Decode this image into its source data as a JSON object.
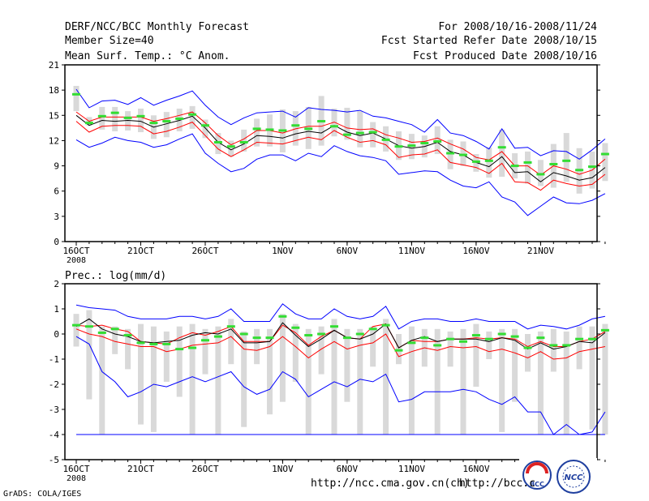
{
  "header": {
    "title": "DERF/NCC/BCC Monthly Forecast",
    "member_size": "Member Size=40",
    "variable": "Mean Surf. Temp.: °C Anom.",
    "period": "For 2008/10/16-2008/11/24",
    "started": "Fcst Started Refer Date 2008/10/15",
    "produced": "Fcst Produced Date 2008/10/16"
  },
  "footer": {
    "grads": "GrADS: COLA/IGES",
    "url1": "http://ncc.cma.gov.cn(ch)",
    "url2": "http://bcc.c",
    "logo1_text": "BCC",
    "logo2_text": "NCC"
  },
  "colors": {
    "max_min": "#0000ff",
    "percentile": "#ff0000",
    "median": "#000000",
    "members": "#d9d9d9",
    "ensemble": "#33dd33",
    "frame": "#000000"
  },
  "chart_data": [
    {
      "type": "line",
      "title": "Mean Surf. Temp.: °C Anom.",
      "x_start_label": "16OCT",
      "year_label": "2008",
      "x_tick_labels": [
        "16OCT",
        "21OCT",
        "26OCT",
        "1NOV",
        "6NOV",
        "11NOV",
        "16NOV",
        "21NOV"
      ],
      "x_tick_days": [
        0,
        5,
        10,
        16,
        21,
        26,
        31,
        36
      ],
      "ylim": [
        0,
        21
      ],
      "y_ticks": [
        0,
        3,
        6,
        9,
        12,
        15,
        18,
        21
      ],
      "series": [
        {
          "name": "max",
          "values": [
            18.1,
            15.9,
            16.7,
            16.8,
            16.3,
            17.1,
            16.2,
            16.8,
            17.3,
            17.9,
            16.2,
            14.8,
            13.9,
            14.7,
            15.3,
            15.4,
            15.5,
            14.8,
            15.9,
            15.7,
            15.6,
            15.4,
            15.6,
            14.9,
            14.7,
            14.3,
            13.9,
            13.0,
            14.5,
            12.9,
            12.6,
            11.9,
            11.0,
            13.4,
            11.1,
            11.2,
            10.2,
            10.8,
            10.7,
            9.8,
            10.9,
            12.2
          ]
        },
        {
          "name": "p75",
          "values": [
            15.4,
            14.3,
            14.8,
            14.8,
            14.8,
            14.8,
            14.3,
            14.6,
            15.0,
            15.4,
            14.1,
            12.6,
            11.5,
            12.2,
            13.2,
            13.2,
            12.9,
            13.4,
            13.7,
            13.7,
            14.2,
            13.5,
            13.3,
            13.4,
            12.7,
            12.3,
            11.8,
            11.9,
            12.3,
            11.6,
            11.0,
            10.0,
            9.7,
            10.7,
            9.0,
            9.0,
            7.9,
            9.0,
            8.6,
            8.0,
            8.5,
            9.8
          ]
        },
        {
          "name": "median",
          "values": [
            15.0,
            13.8,
            14.4,
            14.3,
            14.4,
            14.3,
            13.6,
            14.0,
            14.4,
            14.9,
            13.5,
            11.8,
            10.9,
            11.6,
            12.6,
            12.5,
            12.3,
            12.8,
            13.1,
            12.9,
            13.8,
            13.0,
            12.6,
            12.9,
            12.2,
            11.4,
            11.1,
            11.3,
            11.8,
            10.7,
            10.3,
            9.4,
            8.9,
            10.1,
            8.2,
            8.3,
            7.1,
            8.2,
            7.8,
            7.3,
            7.6,
            8.8
          ]
        },
        {
          "name": "p25",
          "values": [
            14.3,
            13.0,
            13.7,
            13.8,
            13.8,
            13.7,
            12.8,
            13.1,
            13.6,
            14.2,
            12.6,
            11.0,
            10.1,
            10.9,
            11.8,
            11.7,
            11.6,
            12.0,
            12.4,
            12.1,
            13.2,
            12.4,
            11.8,
            12.0,
            11.5,
            10.0,
            10.3,
            10.4,
            10.9,
            9.4,
            9.1,
            8.8,
            8.1,
            9.3,
            7.1,
            7.0,
            6.1,
            7.3,
            6.9,
            6.6,
            6.8,
            8.0
          ]
        },
        {
          "name": "min",
          "values": [
            12.1,
            11.2,
            11.7,
            12.4,
            12.0,
            11.8,
            11.2,
            11.5,
            12.2,
            12.8,
            10.5,
            9.3,
            8.3,
            8.7,
            9.8,
            10.3,
            10.3,
            9.6,
            10.5,
            10.1,
            11.4,
            10.7,
            10.2,
            10.0,
            9.6,
            8.0,
            8.2,
            8.4,
            8.3,
            7.3,
            6.6,
            6.4,
            7.1,
            5.3,
            4.7,
            3.1,
            4.2,
            5.3,
            4.6,
            4.5,
            4.9,
            5.7
          ]
        },
        {
          "name": "ensemble_mean",
          "values": [
            17.5,
            14.1,
            14.9,
            15.3,
            14.7,
            14.9,
            14.1,
            14.3,
            14.6,
            15.1,
            13.8,
            11.8,
            11.3,
            11.8,
            13.4,
            13.3,
            13.2,
            13.8,
            13.4,
            14.3,
            13.7,
            12.7,
            12.9,
            13.0,
            12.1,
            11.3,
            11.4,
            11.7,
            11.9,
            10.5,
            10.3,
            9.5,
            9.6,
            11.2,
            9.0,
            9.4,
            8.0,
            9.2,
            9.6,
            8.5,
            8.9,
            10.4
          ]
        }
      ],
      "member_boxes_low": [
        15.5,
        13.8,
        13.3,
        13.1,
        13.2,
        13.0,
        12.2,
        12.4,
        13.1,
        13.4,
        12.3,
        10.4,
        10.1,
        10.7,
        11.3,
        11.3,
        10.6,
        11.4,
        11.0,
        11.4,
        12.5,
        12.1,
        11.2,
        11.2,
        10.7,
        9.7,
        9.8,
        10.0,
        10.4,
        8.6,
        9.0,
        8.3,
        7.6,
        7.7,
        7.5,
        6.9,
        6.6,
        6.4,
        7.1,
        5.7,
        6.3,
        7.2
      ],
      "member_boxes_high": [
        18.5,
        14.8,
        16.0,
        16.0,
        15.5,
        15.8,
        15.0,
        15.4,
        15.8,
        16.1,
        14.5,
        12.9,
        12.0,
        13.3,
        14.6,
        15.1,
        15.7,
        15.5,
        16.0,
        17.3,
        15.8,
        15.9,
        15.5,
        14.2,
        13.7,
        13.1,
        12.8,
        12.6,
        13.7,
        12.1,
        11.9,
        10.4,
        11.2,
        13.3,
        10.5,
        10.7,
        9.7,
        11.6,
        12.9,
        11.1,
        10.7,
        11.7
      ]
    },
    {
      "type": "line",
      "title": "Prec.: log(mm/d)",
      "x_start_label": "16OCT",
      "year_label": "2008",
      "x_tick_labels": [
        "16OCT",
        "21OCT",
        "26OCT",
        "1NOV",
        "6NOV",
        "11NOV",
        "16NOV",
        "21NOV"
      ],
      "x_tick_days": [
        0,
        5,
        10,
        16,
        21,
        26,
        31,
        36
      ],
      "ylim": [
        -5,
        2
      ],
      "y_ticks": [
        -5,
        -4,
        -3,
        -2,
        -1,
        0,
        1,
        2
      ],
      "series": [
        {
          "name": "max",
          "values": [
            1.15,
            1.05,
            1.0,
            0.95,
            0.7,
            0.6,
            0.6,
            0.6,
            0.7,
            0.7,
            0.6,
            0.7,
            1.0,
            0.5,
            0.5,
            0.5,
            1.2,
            0.8,
            0.6,
            0.6,
            1.0,
            0.7,
            0.6,
            0.7,
            1.1,
            0.2,
            0.5,
            0.6,
            0.6,
            0.5,
            0.5,
            0.6,
            0.5,
            0.5,
            0.5,
            0.2,
            0.35,
            0.3,
            0.2,
            0.35,
            0.6,
            0.7
          ]
        },
        {
          "name": "p75",
          "values": [
            0.35,
            0.3,
            0.35,
            0.2,
            0.1,
            -0.3,
            -0.35,
            -0.4,
            -0.15,
            0.05,
            -0.05,
            0.1,
            0.3,
            -0.3,
            -0.3,
            -0.3,
            0.35,
            0.05,
            -0.45,
            -0.1,
            0.15,
            -0.15,
            -0.2,
            0.3,
            0.4,
            -0.55,
            -0.25,
            -0.3,
            -0.3,
            -0.2,
            -0.2,
            -0.15,
            -0.2,
            -0.15,
            -0.2,
            -0.5,
            -0.3,
            -0.5,
            -0.5,
            -0.3,
            -0.2,
            0.1
          ]
        },
        {
          "name": "median",
          "values": [
            0.3,
            0.6,
            0.2,
            0.0,
            -0.1,
            -0.3,
            -0.35,
            -0.3,
            -0.25,
            -0.05,
            0.05,
            0.0,
            0.2,
            -0.35,
            -0.35,
            -0.3,
            0.45,
            -0.05,
            -0.5,
            -0.2,
            0.15,
            -0.15,
            -0.2,
            0.0,
            0.4,
            -0.55,
            -0.25,
            -0.1,
            -0.3,
            -0.2,
            -0.2,
            -0.2,
            -0.3,
            -0.15,
            -0.25,
            -0.6,
            -0.35,
            -0.6,
            -0.5,
            -0.3,
            -0.35,
            0.05
          ]
        },
        {
          "name": "p25",
          "values": [
            0.2,
            0.0,
            -0.1,
            -0.3,
            -0.4,
            -0.5,
            -0.5,
            -0.7,
            -0.6,
            -0.45,
            -0.4,
            -0.35,
            -0.1,
            -0.6,
            -0.65,
            -0.5,
            -0.1,
            -0.5,
            -0.95,
            -0.6,
            -0.3,
            -0.6,
            -0.45,
            -0.35,
            0.0,
            -0.9,
            -0.7,
            -0.55,
            -0.65,
            -0.5,
            -0.55,
            -0.5,
            -0.7,
            -0.6,
            -0.75,
            -0.95,
            -0.7,
            -1.0,
            -0.95,
            -0.7,
            -0.6,
            -0.5
          ]
        },
        {
          "name": "min",
          "values": [
            -0.1,
            -0.4,
            -1.5,
            -1.9,
            -2.5,
            -2.3,
            -2.0,
            -2.1,
            -1.9,
            -1.7,
            -1.9,
            -1.7,
            -1.5,
            -2.1,
            -2.4,
            -2.2,
            -1.5,
            -1.8,
            -2.5,
            -2.2,
            -1.9,
            -2.1,
            -1.8,
            -1.9,
            -1.6,
            -2.7,
            -2.6,
            -2.3,
            -2.3,
            -2.3,
            -2.2,
            -2.3,
            -2.6,
            -2.8,
            -2.5,
            -3.1,
            -3.1,
            -4.0,
            -3.6,
            -4.0,
            -3.9,
            -3.1
          ]
        },
        {
          "name": "ensemble_mean",
          "values": [
            0.35,
            0.3,
            0.05,
            0.2,
            -0.05,
            -0.35,
            -0.4,
            -0.4,
            -0.6,
            -0.55,
            -0.25,
            -0.1,
            0.3,
            0.0,
            -0.15,
            -0.15,
            0.7,
            0.25,
            -0.05,
            0.0,
            0.3,
            -0.15,
            0.0,
            0.2,
            0.35,
            -0.65,
            -0.35,
            -0.15,
            -0.45,
            -0.2,
            -0.3,
            -0.05,
            -0.2,
            0.0,
            -0.1,
            -0.55,
            -0.15,
            -0.45,
            -0.45,
            -0.2,
            -0.2,
            0.15
          ]
        }
      ],
      "member_boxes_low": [
        -0.5,
        -2.6,
        -4.0,
        -0.8,
        -1.4,
        -3.6,
        -3.9,
        -1.9,
        -2.5,
        -4.0,
        -1.6,
        -4.0,
        -1.2,
        -3.7,
        -1.2,
        -3.2,
        -2.7,
        -1.9,
        -4.0,
        -1.6,
        -4.0,
        -2.7,
        -4.0,
        -1.3,
        -4.0,
        -1.2,
        -4.0,
        -1.3,
        -4.0,
        -1.3,
        -4.0,
        -2.1,
        -1.0,
        -3.9,
        -2.7,
        -1.5,
        -4.0,
        -1.5,
        -4.0,
        -1.4,
        -3.8,
        -4.0
      ],
      "member_boxes_high": [
        0.8,
        0.95,
        0.3,
        0.3,
        0.2,
        0.4,
        0.3,
        0.1,
        0.3,
        0.4,
        0.2,
        0.3,
        0.6,
        0.1,
        0.2,
        0.2,
        0.8,
        0.4,
        0.2,
        0.3,
        0.6,
        0.2,
        0.2,
        0.3,
        0.6,
        0.0,
        0.3,
        0.2,
        0.2,
        0.1,
        0.2,
        0.4,
        0.1,
        0.2,
        0.2,
        0.0,
        0.1,
        0.2,
        0.1,
        0.3,
        0.3,
        0.4
      ],
      "floor_value": -4.0
    }
  ]
}
